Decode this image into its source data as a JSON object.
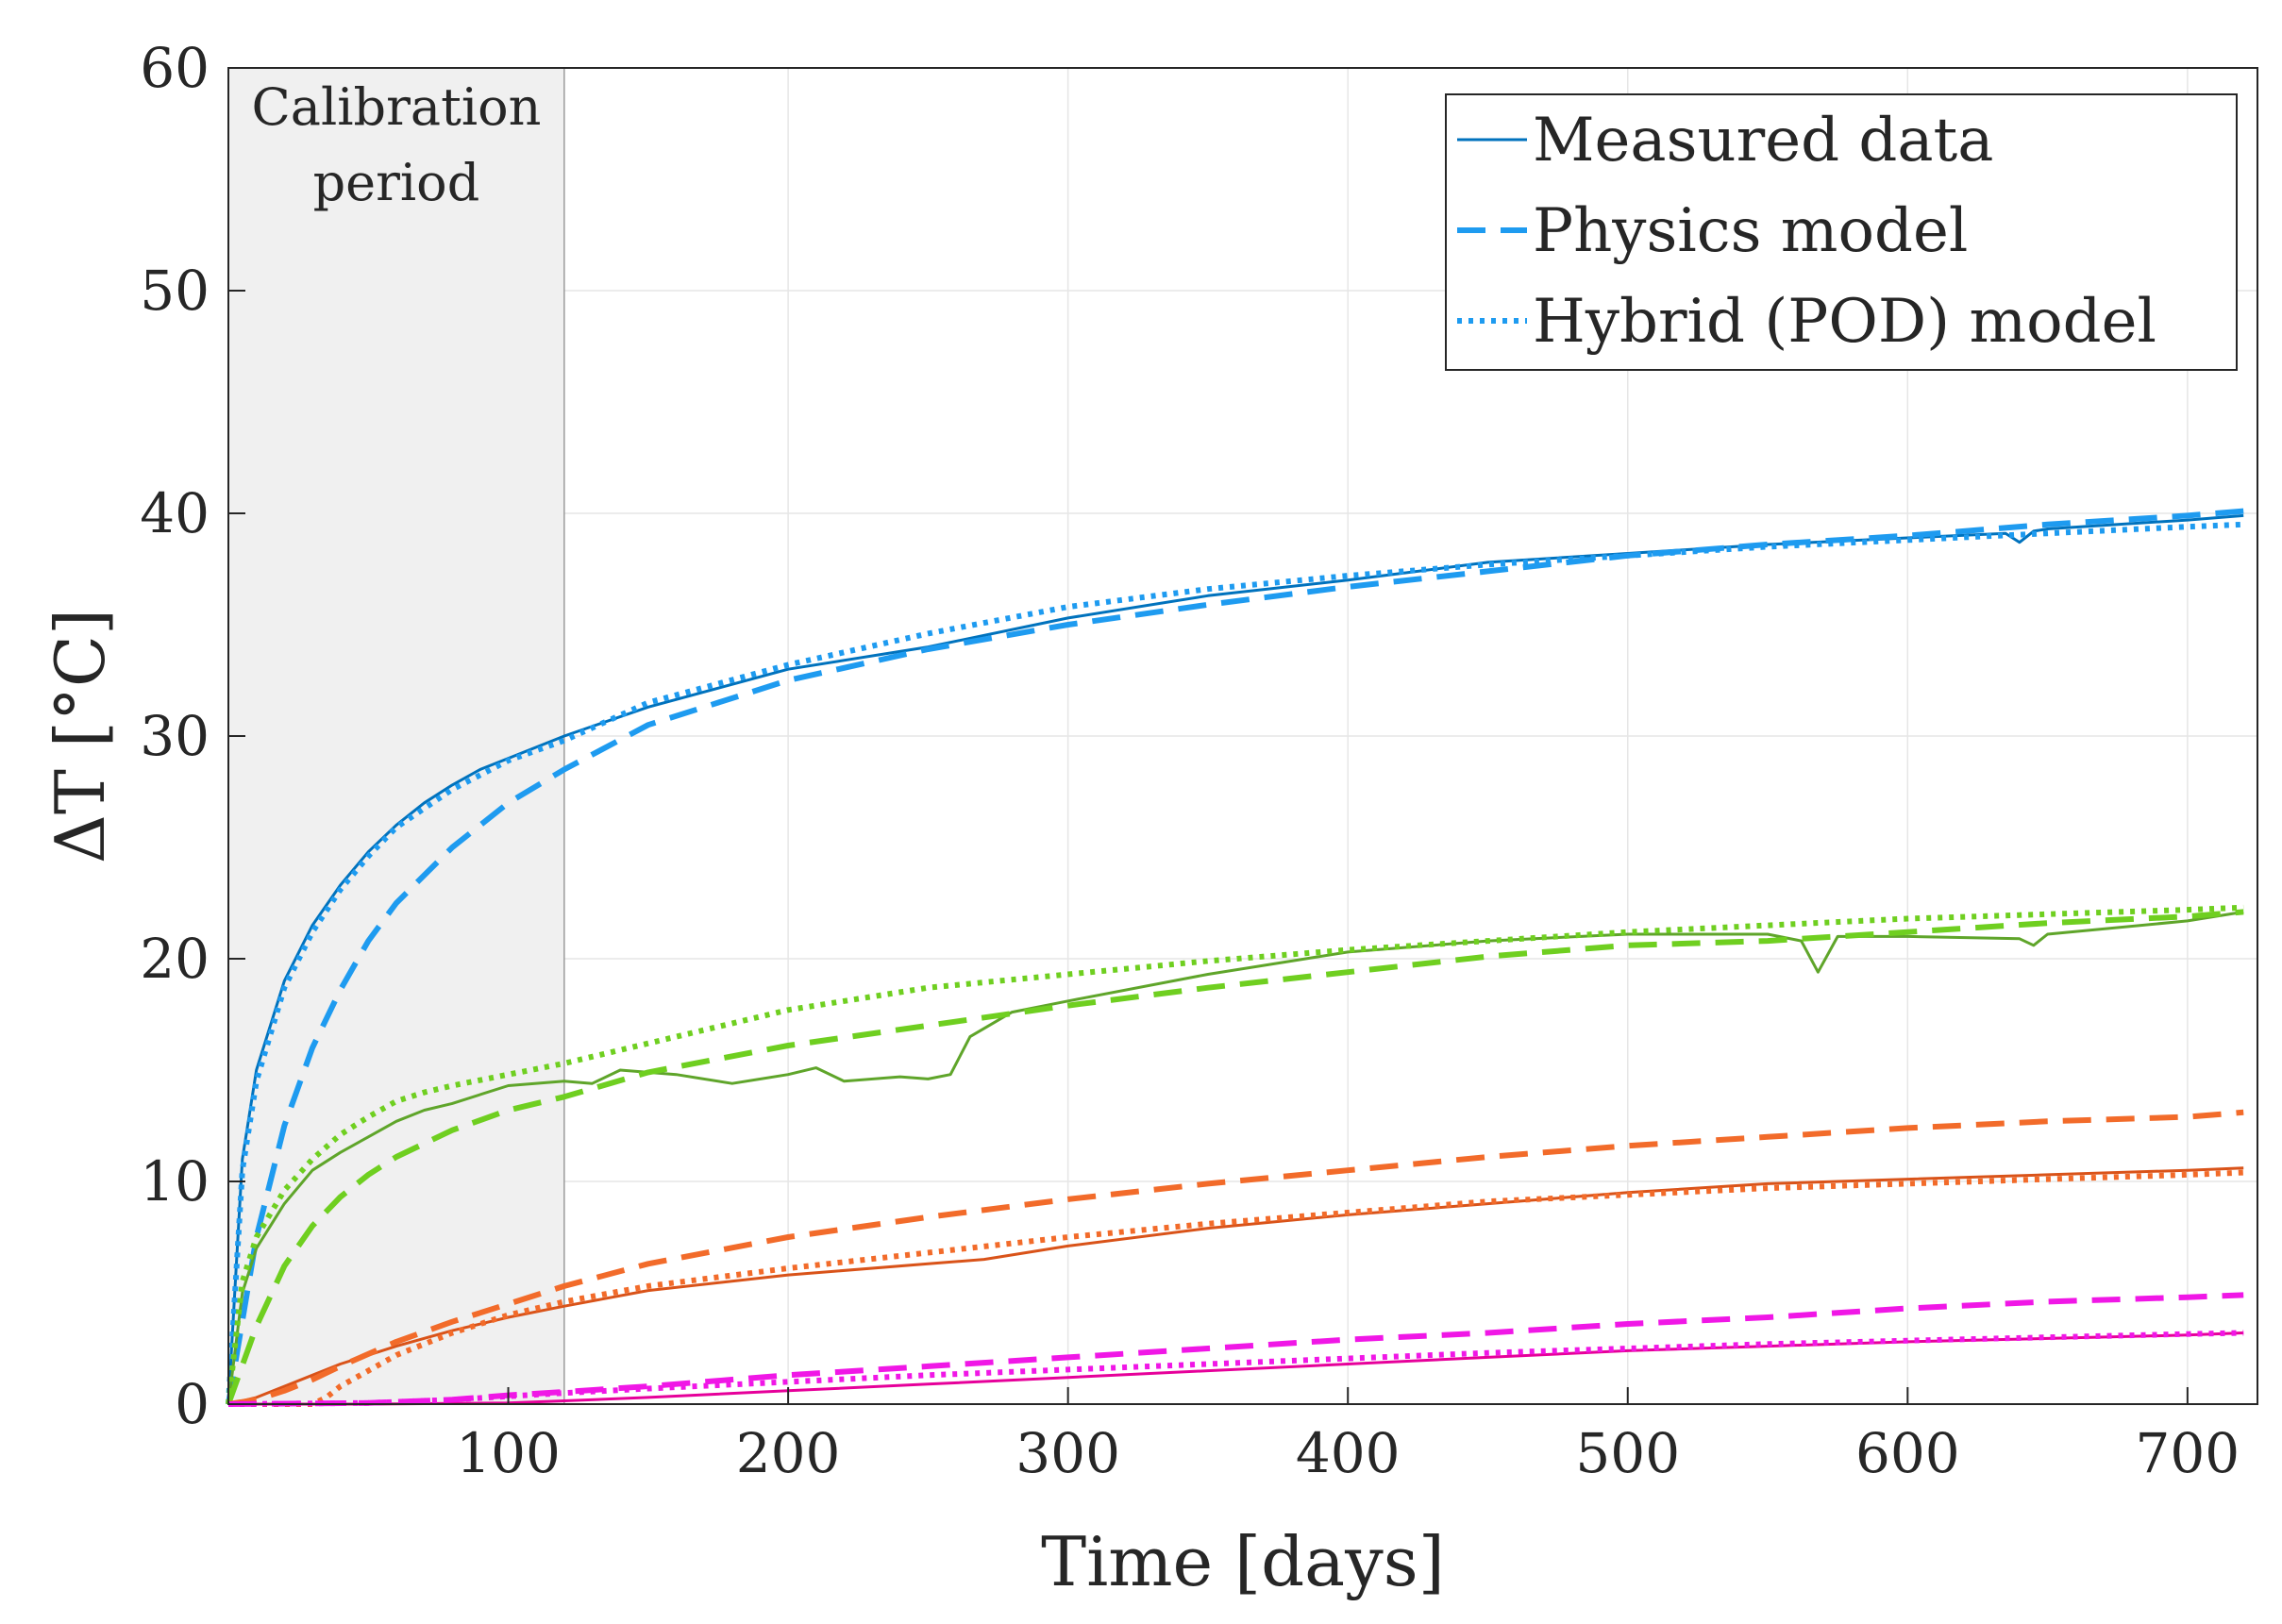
{
  "chart_data": {
    "type": "line",
    "title": "",
    "xlabel": "Time [days]",
    "ylabel": "ΔT [°C]",
    "xlim": [
      0,
      725
    ],
    "ylim": [
      0,
      60
    ],
    "xticks": [
      100,
      200,
      300,
      400,
      500,
      600,
      700
    ],
    "yticks": [
      0,
      10,
      20,
      30,
      40,
      50,
      60
    ],
    "grid": true,
    "legend_position": "top-right",
    "legend": [
      {
        "label": "Measured data",
        "style": "solid",
        "color": "#0072BD"
      },
      {
        "label": "Physics model",
        "style": "dashed",
        "color": "#1E9BF0"
      },
      {
        "label": "Hybrid (POD) model",
        "style": "dotted",
        "color": "#1E9BF0"
      }
    ],
    "shaded_region": {
      "x_start": 0,
      "x_end": 120,
      "label_line1": "Calibration",
      "label_line2": "period"
    },
    "series": [
      {
        "name": "Measured data (blue)",
        "style": "solid",
        "color": "#0072BD",
        "x": [
          0,
          5,
          10,
          20,
          30,
          40,
          50,
          60,
          70,
          80,
          90,
          100,
          120,
          150,
          200,
          250,
          300,
          350,
          400,
          450,
          500,
          550,
          600,
          635,
          640,
          645,
          650,
          700,
          720
        ],
        "y": [
          0,
          11,
          15,
          19,
          21.5,
          23.3,
          24.8,
          26,
          27,
          27.8,
          28.5,
          29,
          30,
          31.3,
          33,
          34,
          35.3,
          36.3,
          37,
          37.8,
          38.2,
          38.6,
          38.9,
          39.1,
          38.7,
          39.2,
          39.3,
          39.7,
          39.9
        ]
      },
      {
        "name": "Physics model (blue)",
        "style": "dashed",
        "color": "#1E9BF0",
        "x": [
          0,
          10,
          20,
          30,
          40,
          50,
          60,
          80,
          100,
          120,
          150,
          200,
          250,
          300,
          350,
          400,
          450,
          500,
          550,
          600,
          650,
          700,
          720
        ],
        "y": [
          0,
          7.5,
          12.5,
          16,
          18.6,
          20.8,
          22.5,
          25,
          27,
          28.5,
          30.5,
          32.5,
          33.9,
          35,
          35.9,
          36.7,
          37.4,
          38.1,
          38.6,
          39,
          39.5,
          39.9,
          40.1
        ]
      },
      {
        "name": "Hybrid (POD) model (blue)",
        "style": "dotted",
        "color": "#1E9BF0",
        "x": [
          0,
          5,
          10,
          20,
          30,
          40,
          50,
          60,
          80,
          100,
          120,
          150,
          200,
          250,
          300,
          350,
          400,
          450,
          500,
          550,
          600,
          650,
          700,
          720
        ],
        "y": [
          0,
          10.5,
          14.5,
          18.7,
          21.2,
          23.1,
          24.6,
          25.9,
          27.6,
          28.9,
          29.8,
          31.5,
          33.2,
          34.6,
          35.8,
          36.6,
          37.2,
          37.7,
          38.1,
          38.5,
          38.8,
          39.1,
          39.4,
          39.5
        ]
      },
      {
        "name": "Measured data (green)",
        "style": "solid",
        "color": "#5FA52A",
        "x": [
          0,
          5,
          10,
          20,
          30,
          40,
          50,
          60,
          70,
          80,
          100,
          120,
          130,
          140,
          160,
          180,
          200,
          210,
          220,
          240,
          250,
          258,
          265,
          280,
          300,
          350,
          400,
          450,
          500,
          550,
          562,
          568,
          575,
          600,
          640,
          645,
          650,
          700,
          720
        ],
        "y": [
          0,
          5,
          7,
          9,
          10.5,
          11.3,
          12,
          12.7,
          13.2,
          13.5,
          14.3,
          14.5,
          14.4,
          15,
          14.8,
          14.4,
          14.8,
          15.1,
          14.5,
          14.7,
          14.6,
          14.8,
          16.5,
          17.6,
          18.1,
          19.3,
          20.3,
          20.8,
          21.1,
          21.1,
          20.8,
          19.4,
          21,
          21,
          20.9,
          20.6,
          21.1,
          21.7,
          22.1
        ]
      },
      {
        "name": "Physics model (green)",
        "style": "dashed",
        "color": "#6FCF20",
        "x": [
          0,
          10,
          20,
          30,
          40,
          50,
          60,
          80,
          100,
          120,
          150,
          200,
          250,
          300,
          350,
          400,
          450,
          500,
          550,
          600,
          650,
          700,
          720
        ],
        "y": [
          0,
          3.5,
          6.2,
          8,
          9.3,
          10.3,
          11.1,
          12.3,
          13.2,
          13.8,
          14.9,
          16.1,
          17,
          17.9,
          18.7,
          19.4,
          20.1,
          20.6,
          20.8,
          21.2,
          21.6,
          21.9,
          22.1
        ]
      },
      {
        "name": "Hybrid (POD) model (green)",
        "style": "dotted",
        "color": "#6FCF20",
        "x": [
          0,
          5,
          10,
          20,
          30,
          40,
          50,
          60,
          70,
          80,
          100,
          120,
          150,
          200,
          250,
          300,
          350,
          400,
          450,
          500,
          550,
          600,
          650,
          700,
          720
        ],
        "y": [
          0,
          5.5,
          7.5,
          9.6,
          11,
          12.1,
          12.9,
          13.6,
          14,
          14.3,
          14.8,
          15.3,
          16.2,
          17.7,
          18.7,
          19.3,
          19.9,
          20.4,
          20.8,
          21.2,
          21.5,
          21.8,
          22,
          22.2,
          22.3
        ]
      },
      {
        "name": "Measured data (orange)",
        "style": "solid",
        "color": "#D95319",
        "x": [
          0,
          10,
          20,
          30,
          40,
          50,
          60,
          80,
          100,
          120,
          150,
          200,
          250,
          270,
          300,
          350,
          400,
          450,
          500,
          550,
          600,
          650,
          700,
          720
        ],
        "y": [
          0,
          0.3,
          0.8,
          1.3,
          1.8,
          2.2,
          2.6,
          3.3,
          3.9,
          4.4,
          5.1,
          5.8,
          6.3,
          6.5,
          7.1,
          7.9,
          8.5,
          9,
          9.5,
          9.9,
          10.1,
          10.3,
          10.5,
          10.6
        ]
      },
      {
        "name": "Physics model (orange)",
        "style": "dashed",
        "color": "#F26B2A",
        "x": [
          0,
          10,
          20,
          30,
          40,
          60,
          80,
          100,
          120,
          150,
          200,
          250,
          300,
          350,
          400,
          450,
          500,
          550,
          600,
          650,
          700,
          720
        ],
        "y": [
          0,
          0.2,
          0.6,
          1.1,
          1.7,
          2.8,
          3.7,
          4.5,
          5.3,
          6.3,
          7.5,
          8.4,
          9.2,
          9.9,
          10.5,
          11.1,
          11.6,
          12,
          12.4,
          12.7,
          12.9,
          13.1
        ]
      },
      {
        "name": "Hybrid (POD) model (orange)",
        "style": "dotted",
        "color": "#F26B2A",
        "x": [
          0,
          30,
          35,
          40,
          50,
          60,
          80,
          100,
          120,
          150,
          200,
          250,
          300,
          350,
          400,
          450,
          500,
          550,
          600,
          650,
          700,
          720
        ],
        "y": [
          0,
          0,
          0.3,
          0.8,
          1.5,
          2.2,
          3.2,
          4,
          4.6,
          5.3,
          6.1,
          6.8,
          7.5,
          8.1,
          8.6,
          9.1,
          9.4,
          9.7,
          9.9,
          10.1,
          10.3,
          10.4
        ]
      },
      {
        "name": "Measured data (magenta)",
        "style": "solid",
        "color": "#E6009A",
        "x": [
          0,
          50,
          100,
          120,
          150,
          200,
          250,
          300,
          350,
          400,
          450,
          500,
          550,
          600,
          650,
          700,
          720
        ],
        "y": [
          0,
          0,
          0.05,
          0.15,
          0.3,
          0.6,
          0.9,
          1.2,
          1.5,
          1.8,
          2.1,
          2.4,
          2.6,
          2.8,
          2.95,
          3.1,
          3.2
        ]
      },
      {
        "name": "Physics model (magenta)",
        "style": "dashed",
        "color": "#F017E6",
        "x": [
          0,
          50,
          80,
          100,
          120,
          150,
          200,
          250,
          300,
          350,
          400,
          450,
          500,
          550,
          600,
          650,
          700,
          720
        ],
        "y": [
          0,
          0.05,
          0.2,
          0.4,
          0.55,
          0.8,
          1.3,
          1.7,
          2.1,
          2.5,
          2.9,
          3.2,
          3.6,
          3.9,
          4.3,
          4.6,
          4.8,
          4.9
        ]
      },
      {
        "name": "Hybrid (POD) model (magenta)",
        "style": "dotted",
        "color": "#F017E6",
        "x": [
          0,
          50,
          80,
          100,
          120,
          150,
          200,
          250,
          300,
          350,
          400,
          450,
          500,
          550,
          600,
          650,
          700,
          720
        ],
        "y": [
          0,
          0.05,
          0.2,
          0.35,
          0.5,
          0.7,
          1.0,
          1.3,
          1.55,
          1.8,
          2.05,
          2.3,
          2.5,
          2.7,
          2.85,
          3.0,
          3.15,
          3.2
        ]
      }
    ]
  }
}
